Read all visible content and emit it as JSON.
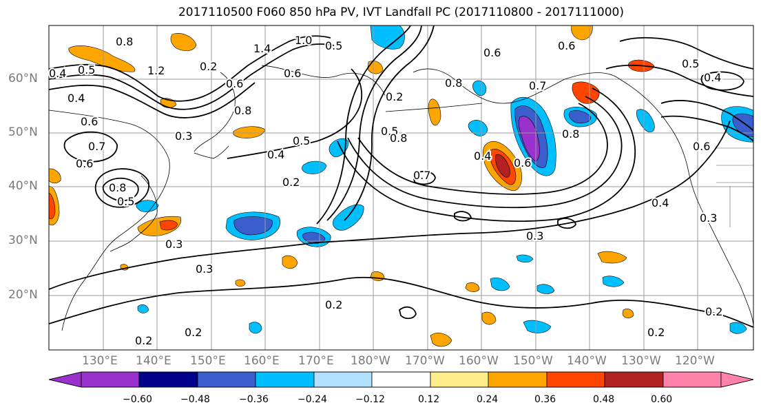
{
  "title": "2017110500 F060 850 hPa PV, IVT Landfall PC (2017110800 - 2017111000)",
  "map": {
    "lat_labels": [
      "60°N",
      "50°N",
      "40°N",
      "30°N",
      "20°N"
    ],
    "lon_labels": [
      "130°E",
      "140°E",
      "150°E",
      "160°E",
      "170°E",
      "180°W",
      "170°W",
      "160°W",
      "150°W",
      "140°W",
      "130°W",
      "120°W"
    ],
    "contour_labels": [
      "0.8",
      "1.4",
      "1.0",
      "0.5",
      "0.4",
      "0.5",
      "0.4",
      "0.6",
      "0.7",
      "1.2",
      "0.3",
      "0.2",
      "0.6",
      "0.8",
      "0.6",
      "0.8",
      "0.6",
      "0.5",
      "0.4",
      "0.2",
      "0.5",
      "0.5",
      "0.4",
      "0.2",
      "0.8",
      "0.7",
      "0.8",
      "0.6",
      "0.6",
      "0.4",
      "0.3",
      "0.3",
      "0.3",
      "0.2",
      "0.3",
      "0.2",
      "0.2",
      "0.2",
      "0.5",
      "0.7",
      "0.8",
      "0.6",
      "0.4",
      "0.6",
      "0.2"
    ]
  },
  "colorbar": {
    "colors": [
      "#9932cc",
      "#00008b",
      "#3a5fcd",
      "#00bfff",
      "#b0e2ff",
      "#ffffff",
      "#ffec8b",
      "#ffa500",
      "#ff4500",
      "#b22222",
      "#ff82ab"
    ],
    "tick_labels": [
      "−0.60",
      "−0.48",
      "−0.36",
      "−0.24",
      "−0.12",
      "0.12",
      "0.24",
      "0.36",
      "0.48",
      "0.60"
    ]
  }
}
